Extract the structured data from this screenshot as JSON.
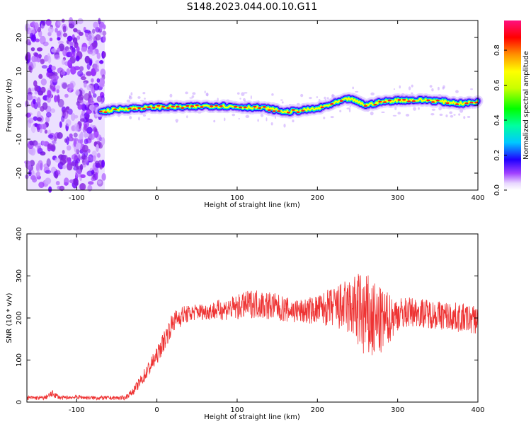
{
  "title": "S148.2023.044.00.10.G11",
  "chart_data": [
    {
      "type": "heatmap",
      "xlabel": "Height of straight line (km)",
      "ylabel": "Frequency (Hz)",
      "xlim": [
        -162,
        400
      ],
      "ylim": [
        -25,
        25
      ],
      "xticks": [
        -100,
        0,
        100,
        200,
        300,
        400
      ],
      "yticks": [
        -20,
        -10,
        0,
        10,
        20
      ],
      "colorbar": {
        "label": "Normalized spectral amplitude",
        "range": [
          0.0,
          0.97
        ],
        "ticks": [
          0.0,
          0.2,
          0.4,
          0.6,
          0.8
        ]
      },
      "noise_region_x": [
        -162,
        -65
      ],
      "ridge": {
        "x": [
          -70,
          -60,
          -40,
          -20,
          0,
          20,
          40,
          60,
          80,
          100,
          120,
          140,
          160,
          180,
          200,
          220,
          240,
          250,
          260,
          280,
          300,
          320,
          340,
          360,
          380,
          400
        ],
        "freq": [
          -2,
          -1.5,
          -1,
          -0.8,
          -0.5,
          -0.5,
          -0.5,
          -0.2,
          -0.2,
          -0.5,
          -0.6,
          -1.0,
          -2.0,
          -1.5,
          -1.0,
          0.5,
          2.0,
          1.0,
          0.0,
          1.0,
          1.5,
          1.5,
          1.5,
          1.0,
          0.5,
          1.0
        ]
      },
      "grid": false
    },
    {
      "type": "line",
      "xlabel": "Height of straight line (km)",
      "ylabel": "SNR (10 * v/v)",
      "xlim": [
        -162,
        400
      ],
      "ylim": [
        0,
        400
      ],
      "xticks": [
        -100,
        0,
        100,
        200,
        300,
        400
      ],
      "yticks": [
        0,
        100,
        200,
        300,
        400
      ],
      "color": "#ee3333",
      "series": [
        {
          "x": [
            -162,
            -140,
            -130,
            -120,
            -100,
            -80,
            -60,
            -40,
            -30,
            -20,
            -10,
            0,
            10,
            20,
            30,
            40,
            50,
            60,
            80,
            100,
            120,
            140,
            160,
            180,
            200,
            220,
            240,
            250,
            260,
            270,
            280,
            290,
            300,
            320,
            340,
            360,
            380,
            400
          ],
          "values": [
            10,
            10,
            20,
            10,
            12,
            10,
            10,
            10,
            25,
            50,
            80,
            110,
            150,
            190,
            205,
            210,
            215,
            215,
            220,
            225,
            235,
            230,
            220,
            215,
            220,
            225,
            225,
            220,
            200,
            190,
            190,
            200,
            210,
            215,
            210,
            205,
            200,
            195
          ],
          "spread": [
            5,
            5,
            8,
            5,
            5,
            5,
            5,
            5,
            8,
            15,
            20,
            20,
            25,
            25,
            25,
            20,
            20,
            20,
            25,
            30,
            35,
            35,
            30,
            30,
            35,
            50,
            70,
            90,
            110,
            100,
            80,
            60,
            40,
            35,
            35,
            35,
            35,
            35
          ]
        }
      ],
      "grid": false
    }
  ]
}
